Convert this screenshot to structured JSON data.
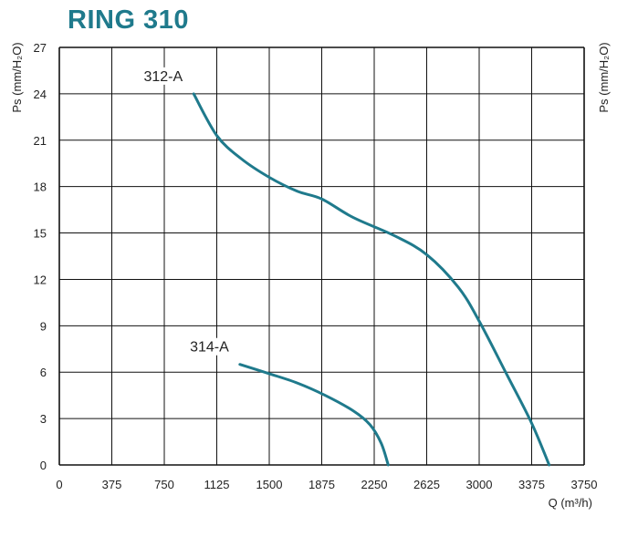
{
  "chart_data": {
    "type": "line",
    "title": "RING 310",
    "xlabel": "Q (m³/h)",
    "ylabel": "Ps (mm/H₂O)",
    "ylabel_right": "Ps (mm/H₂O)",
    "xlim": [
      0,
      3750
    ],
    "ylim": [
      0,
      27
    ],
    "xticks": [
      "0",
      "375",
      "750",
      "1125",
      "1500",
      "1875",
      "2250",
      "2625",
      "3000",
      "3375",
      "3750"
    ],
    "yticks": [
      "0",
      "3",
      "6",
      "9",
      "12",
      "15",
      "18",
      "21",
      "24",
      "27"
    ],
    "grid": true,
    "color": "#1f7a8c",
    "series": [
      {
        "name": "312-A",
        "x": [
          960,
          1125,
          1300,
          1500,
          1700,
          1875,
          2100,
          2400,
          2625,
          2850,
          3000,
          3200,
          3375,
          3500
        ],
        "y": [
          24.0,
          21.3,
          19.8,
          18.6,
          17.7,
          17.2,
          16.0,
          14.8,
          13.6,
          11.5,
          9.3,
          5.8,
          2.7,
          0
        ]
      },
      {
        "name": "314-A",
        "x": [
          1290,
          1500,
          1700,
          1900,
          2100,
          2220,
          2300,
          2350
        ],
        "y": [
          6.5,
          5.9,
          5.3,
          4.5,
          3.5,
          2.6,
          1.4,
          0
        ]
      }
    ]
  }
}
